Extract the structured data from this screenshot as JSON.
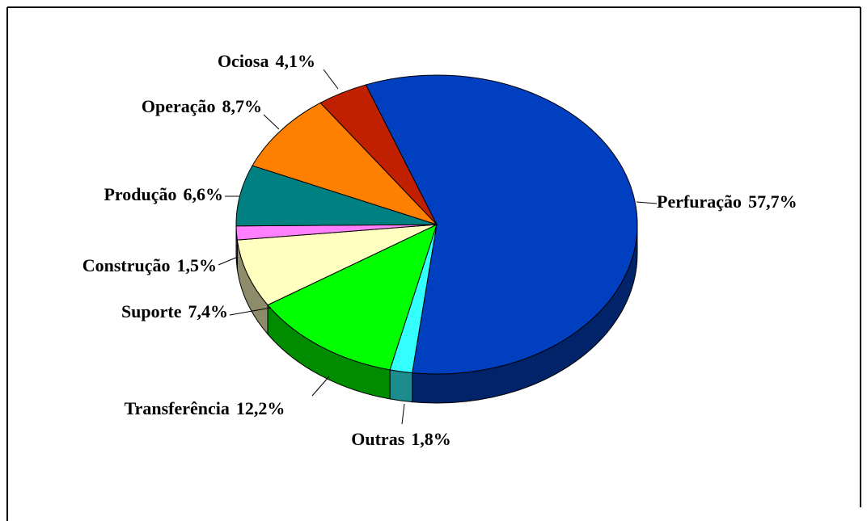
{
  "chart_data": {
    "type": "pie3d",
    "categories": [
      "Perfuração",
      "Outras",
      "Transferência",
      "Suporte",
      "Construção",
      "Produção",
      "Operação",
      "Ociosa"
    ],
    "values": [
      57.7,
      1.8,
      12.2,
      7.4,
      1.5,
      6.6,
      8.7,
      4.1
    ],
    "value_labels": [
      "57,7%",
      "1,8%",
      "12,2%",
      "7,4%",
      "1,5%",
      "6,6%",
      "8,7%",
      "4,1%"
    ],
    "colors": [
      "#0040c0",
      "#33ffff",
      "#00ff00",
      "#ffffc0",
      "#ff80ff",
      "#008080",
      "#ff8000",
      "#c02000"
    ]
  }
}
